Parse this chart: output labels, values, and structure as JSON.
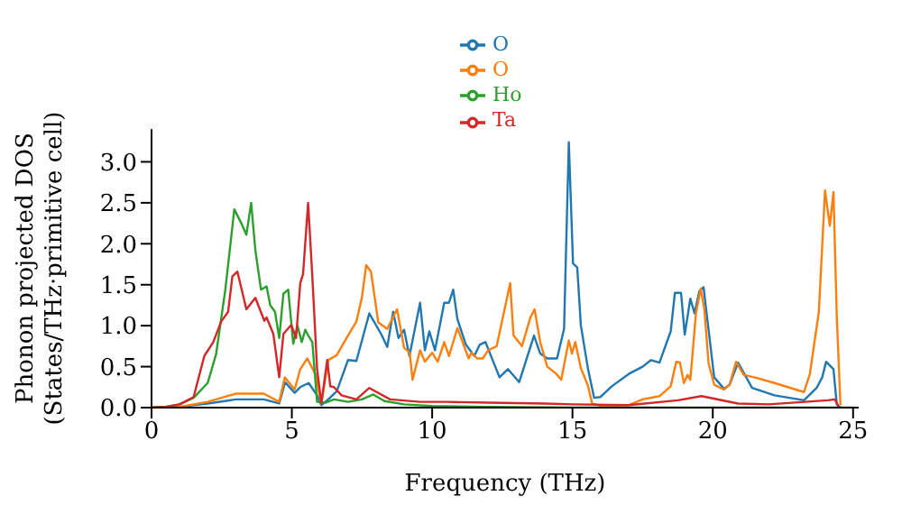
{
  "chart_data": {
    "type": "line",
    "xlabel": "Frequency (THz)",
    "ylabel": "Phonon projected DOS\n(States/THz·primitive cell)",
    "xlim": [
      0,
      25.2
    ],
    "xticks": [
      0,
      5,
      10,
      15,
      20,
      25
    ],
    "ylim": [
      0,
      3.4
    ],
    "yticks": [
      {
        "value": 0,
        "label": "0.0"
      },
      {
        "value": 0.5,
        "label": "0.5"
      },
      {
        "value": 1,
        "label": "1.0"
      },
      {
        "value": 1.5,
        "label": "1.5"
      },
      {
        "value": 2,
        "label": "2.0"
      },
      {
        "value": 2.5,
        "label": "2.5"
      },
      {
        "value": 3,
        "label": "3.0"
      }
    ],
    "grid": false,
    "legend": "top",
    "marker": "none",
    "line_style": "solid",
    "series": [
      {
        "name": "O",
        "color": "#1f77b4",
        "x": [
          0,
          1,
          2,
          3,
          4,
          4.55,
          4.76,
          5.1,
          5.3,
          5.6,
          5.9,
          6.05,
          6.3,
          6.6,
          7.0,
          7.3,
          7.76,
          8.18,
          8.4,
          8.61,
          8.8,
          9.0,
          9.19,
          9.57,
          9.74,
          9.9,
          10.1,
          10.43,
          10.6,
          10.75,
          10.9,
          11.2,
          11.5,
          11.7,
          11.9,
          12.4,
          12.7,
          13.1,
          13.63,
          13.85,
          14.1,
          14.45,
          14.7,
          14.87,
          15.02,
          15.17,
          15.3,
          15.55,
          15.77,
          16.0,
          16.4,
          17.05,
          17.5,
          17.8,
          18.1,
          18.5,
          18.65,
          18.87,
          19.0,
          19.2,
          19.35,
          19.52,
          19.67,
          19.85,
          20.05,
          20.4,
          20.6,
          20.9,
          21.4,
          22.2,
          23.25,
          23.7,
          23.9,
          24.04,
          24.3,
          24.42,
          24.55
        ],
        "values": [
          0,
          0.01,
          0.05,
          0.1,
          0.1,
          0.05,
          0.31,
          0.18,
          0.25,
          0.3,
          0.15,
          0.03,
          0.1,
          0.2,
          0.58,
          0.57,
          1.15,
          0.9,
          0.74,
          1.17,
          0.85,
          0.95,
          0.63,
          1.28,
          0.7,
          0.93,
          0.7,
          1.28,
          1.28,
          1.44,
          1.08,
          0.77,
          0.63,
          0.77,
          0.8,
          0.37,
          0.47,
          0.31,
          0.88,
          0.66,
          0.6,
          0.6,
          0.96,
          3.24,
          1.76,
          1.71,
          1.0,
          0.48,
          0.12,
          0.13,
          0.26,
          0.42,
          0.5,
          0.58,
          0.55,
          0.93,
          1.4,
          1.4,
          0.89,
          1.33,
          1.15,
          1.42,
          1.47,
          0.95,
          0.37,
          0.23,
          0.28,
          0.55,
          0.24,
          0.15,
          0.09,
          0.24,
          0.37,
          0.56,
          0.47,
          0.04,
          0
        ]
      },
      {
        "name": "O",
        "color": "#ff7f0e",
        "x": [
          0,
          1,
          2,
          3,
          4,
          4.55,
          4.75,
          5.1,
          5.3,
          5.55,
          5.85,
          6.05,
          6.3,
          6.6,
          7.0,
          7.3,
          7.5,
          7.65,
          7.82,
          8.08,
          8.4,
          8.6,
          8.75,
          9.0,
          9.2,
          9.3,
          9.57,
          9.74,
          10.0,
          10.2,
          10.43,
          10.6,
          10.9,
          11.0,
          11.3,
          11.4,
          11.6,
          11.8,
          12.0,
          12.3,
          12.78,
          12.9,
          13.2,
          13.5,
          13.65,
          13.85,
          14.1,
          14.4,
          14.6,
          14.87,
          14.98,
          15.1,
          15.3,
          15.55,
          15.7,
          16.0,
          17.0,
          17.5,
          18.1,
          18.5,
          18.7,
          18.83,
          18.97,
          19.1,
          19.2,
          19.4,
          19.57,
          19.7,
          19.85,
          20.05,
          20.4,
          20.6,
          20.83,
          21.1,
          21.6,
          22.2,
          23.25,
          23.46,
          23.78,
          24.0,
          24.17,
          24.3,
          24.42,
          24.55
        ],
        "values": [
          0,
          0.01,
          0.07,
          0.17,
          0.17,
          0.07,
          0.37,
          0.22,
          0.47,
          0.6,
          0.4,
          0.05,
          0.58,
          0.64,
          0.88,
          1.05,
          1.35,
          1.74,
          1.66,
          1.04,
          0.96,
          1.1,
          1.2,
          0.73,
          0.67,
          0.34,
          0.7,
          0.56,
          0.67,
          0.56,
          0.8,
          0.63,
          0.97,
          0.88,
          0.6,
          0.67,
          0.6,
          0.6,
          0.7,
          0.75,
          1.52,
          0.88,
          0.75,
          1.1,
          1.2,
          0.8,
          0.5,
          0.42,
          0.34,
          0.82,
          0.66,
          0.8,
          0.48,
          0.27,
          0.05,
          0.02,
          0.03,
          0.1,
          0.14,
          0.26,
          0.56,
          0.55,
          0.3,
          0.4,
          0.34,
          1.15,
          1.45,
          1.2,
          0.54,
          0.28,
          0.22,
          0.28,
          0.56,
          0.4,
          0.36,
          0.3,
          0.19,
          0.41,
          1.17,
          2.65,
          2.22,
          2.63,
          1.1,
          0.03
        ]
      },
      {
        "name": "Ho",
        "color": "#2ca02c",
        "x": [
          0,
          0.5,
          1,
          1.5,
          2,
          2.3,
          2.63,
          2.95,
          3.2,
          3.38,
          3.55,
          3.7,
          3.9,
          4.1,
          4.23,
          4.4,
          4.55,
          4.7,
          4.87,
          5.05,
          5.2,
          5.35,
          5.48,
          5.6,
          5.73,
          5.9,
          6.2,
          6.5,
          7.0,
          7.5,
          7.9,
          8.3,
          9.0,
          10.0,
          12.0,
          15.0,
          20.0,
          25.0
        ],
        "values": [
          0,
          0.01,
          0.04,
          0.12,
          0.3,
          0.65,
          1.44,
          2.42,
          2.25,
          2.11,
          2.5,
          1.92,
          1.44,
          1.48,
          1.25,
          1.17,
          0.85,
          1.39,
          1.44,
          0.78,
          1.0,
          0.8,
          0.95,
          0.87,
          0.8,
          0.07,
          0.06,
          0.1,
          0.07,
          0.1,
          0.16,
          0.08,
          0.04,
          0.02,
          0.01,
          0,
          0,
          0
        ]
      },
      {
        "name": "Ta",
        "color": "#d62728",
        "x": [
          0,
          0.5,
          1,
          1.5,
          1.88,
          2.2,
          2.48,
          2.73,
          2.88,
          3.06,
          3.38,
          3.7,
          4.02,
          4.1,
          4.34,
          4.55,
          4.7,
          4.98,
          5.15,
          5.3,
          5.4,
          5.58,
          5.73,
          5.9,
          6.05,
          6.26,
          6.37,
          6.5,
          6.77,
          7.3,
          7.76,
          8.5,
          9.57,
          10.5,
          12,
          14,
          15,
          17,
          18.76,
          19.6,
          20.9,
          22,
          24.1,
          24.35,
          24.5
        ],
        "values": [
          0,
          0.01,
          0.04,
          0.13,
          0.63,
          0.8,
          1.05,
          1.17,
          1.6,
          1.66,
          1.2,
          1.34,
          1.06,
          1.1,
          0.9,
          0.37,
          0.9,
          1.01,
          0.85,
          1.52,
          1.63,
          2.5,
          1.6,
          0.47,
          0.05,
          0.58,
          0.26,
          0.25,
          0.15,
          0.1,
          0.24,
          0.1,
          0.07,
          0.07,
          0.06,
          0.05,
          0.04,
          0.03,
          0.09,
          0.14,
          0.05,
          0.04,
          0.09,
          0.1,
          0
        ]
      }
    ]
  }
}
